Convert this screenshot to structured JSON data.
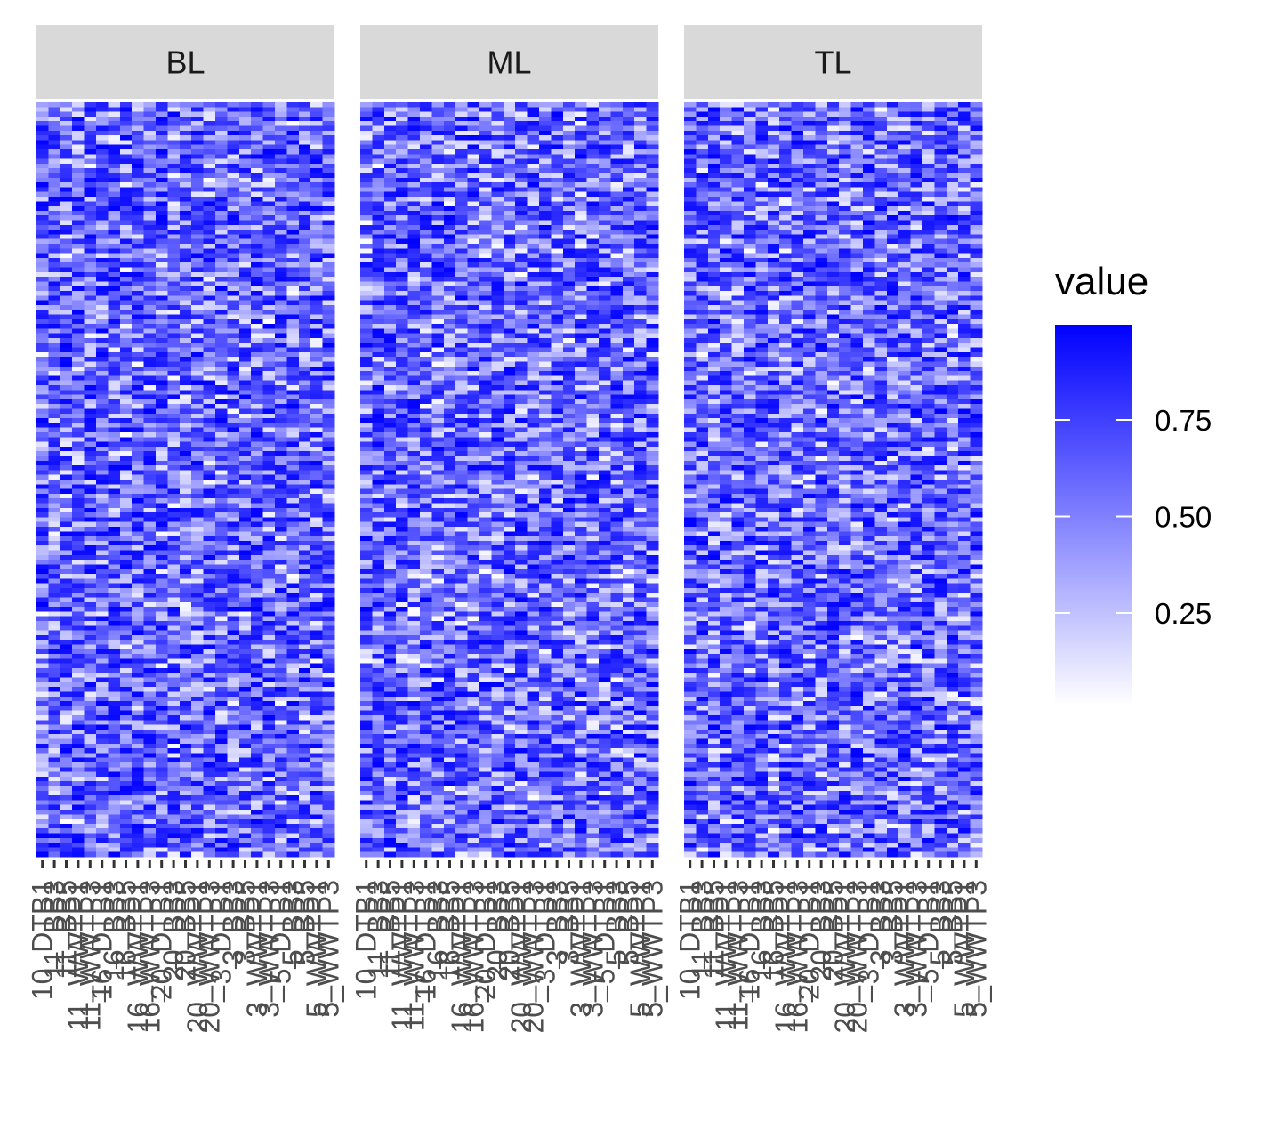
{
  "chart_data": {
    "type": "heatmap",
    "panels": [
      "BL",
      "ML",
      "TL"
    ],
    "x_categories": [
      "10_DTB1",
      "11_BB3",
      "11_BB5",
      "11_WWTP1",
      "11_WWTP3",
      "16_DTB1",
      "16_BB3",
      "16_BB5",
      "16_WWTP1",
      "16_WWTP3",
      "20_DTB1",
      "20_BB3",
      "20_BB5",
      "20_WWTP1",
      "20_WWTP3",
      "3_DTB1",
      "3_BB3",
      "3_BB5",
      "3_WWTP1",
      "3_WWTP3",
      "5_DTB1",
      "5_BB3",
      "5_BB5",
      "5_WWTP1",
      "5_WWTP3"
    ],
    "n_rows": 160,
    "value_range": [
      0,
      1
    ],
    "legend": {
      "title": "value",
      "breaks": [
        0.25,
        0.5,
        0.75
      ],
      "break_labels": [
        "0.25",
        "0.50",
        "0.75"
      ],
      "position": "right"
    },
    "colors": {
      "low": "#ffffff",
      "high": "#0000ff"
    },
    "seeds": [
      11,
      23,
      37
    ]
  }
}
